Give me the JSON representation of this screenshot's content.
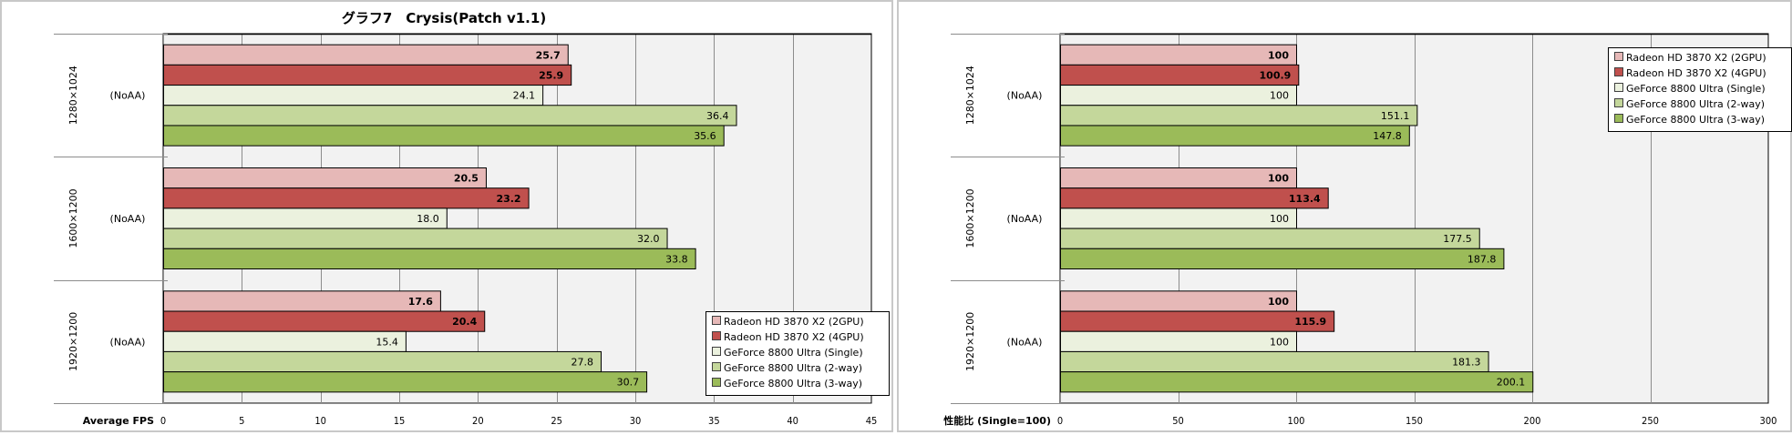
{
  "colors": {
    "plot_bg": "#f2f2f2",
    "grid": "#8c8c8c",
    "bar_border": "#000000",
    "series": [
      "#e6b8b7",
      "#c0504d",
      "#ebf1de",
      "#c4d79b",
      "#9bbb59"
    ]
  },
  "chart_data": [
    {
      "type": "bar",
      "orientation": "horizontal",
      "title": "グラフ7　Crysis(Patch v1.1)",
      "xlabel": "Average FPS",
      "ylabel": "",
      "xlim": [
        0,
        45
      ],
      "xticks": [
        0,
        5,
        10,
        15,
        20,
        25,
        30,
        35,
        40,
        45
      ],
      "grid": true,
      "legend_position": "bottom-right",
      "categories": [
        {
          "resolution": "1280×1024",
          "setting": "(NoAA)"
        },
        {
          "resolution": "1600×1200",
          "setting": "(NoAA)"
        },
        {
          "resolution": "1920×1200",
          "setting": "(NoAA)"
        }
      ],
      "series": [
        {
          "name": "Radeon HD 3870  X2 (2GPU)",
          "values": [
            25.7,
            20.5,
            17.6
          ],
          "labels": [
            "25.7",
            "20.5",
            "17.6"
          ],
          "bold_labels": true
        },
        {
          "name": "Radeon HD 3870  X2 (4GPU)",
          "values": [
            25.9,
            23.2,
            20.4
          ],
          "labels": [
            "25.9",
            "23.2",
            "20.4"
          ],
          "bold_labels": true
        },
        {
          "name": "GeForce 8800  Ultra (Single)",
          "values": [
            24.1,
            18.0,
            15.4
          ],
          "labels": [
            "24.1",
            "18.0",
            "15.4"
          ],
          "bold_labels": false
        },
        {
          "name": "GeForce 8800  Ultra (2-way)",
          "values": [
            36.4,
            32.0,
            27.8
          ],
          "labels": [
            "36.4",
            "32.0",
            "27.8"
          ],
          "bold_labels": false
        },
        {
          "name": "GeForce 8800  Ultra (3-way)",
          "values": [
            35.6,
            33.8,
            30.7
          ],
          "labels": [
            "35.6",
            "33.8",
            "30.7"
          ],
          "bold_labels": false
        }
      ]
    },
    {
      "type": "bar",
      "orientation": "horizontal",
      "title": "",
      "xlabel": "性能比 (Single=100)",
      "ylabel": "",
      "xlim": [
        0,
        300
      ],
      "xticks": [
        0,
        50,
        100,
        150,
        200,
        250,
        300
      ],
      "grid": true,
      "legend_position": "top-right",
      "categories": [
        {
          "resolution": "1280×1024",
          "setting": "(NoAA)"
        },
        {
          "resolution": "1600×1200",
          "setting": "(NoAA)"
        },
        {
          "resolution": "1920×1200",
          "setting": "(NoAA)"
        }
      ],
      "series": [
        {
          "name": "Radeon HD 3870  X2 (2GPU)",
          "values": [
            100,
            100,
            100
          ],
          "labels": [
            "100",
            "100",
            "100"
          ],
          "bold_labels": true
        },
        {
          "name": "Radeon HD 3870  X2 (4GPU)",
          "values": [
            100.9,
            113.4,
            115.9
          ],
          "labels": [
            "100.9",
            "113.4",
            "115.9"
          ],
          "bold_labels": true
        },
        {
          "name": "GeForce 8800  Ultra (Single)",
          "values": [
            100,
            100,
            100
          ],
          "labels": [
            "100",
            "100",
            "100"
          ],
          "bold_labels": false
        },
        {
          "name": "GeForce 8800  Ultra (2-way)",
          "values": [
            151.1,
            177.5,
            181.3
          ],
          "labels": [
            "151.1",
            "177.5",
            "181.3"
          ],
          "bold_labels": false
        },
        {
          "name": "GeForce 8800  Ultra (3-way)",
          "values": [
            147.8,
            187.8,
            200.1
          ],
          "labels": [
            "147.8",
            "187.8",
            "200.1"
          ],
          "bold_labels": false
        }
      ]
    }
  ]
}
